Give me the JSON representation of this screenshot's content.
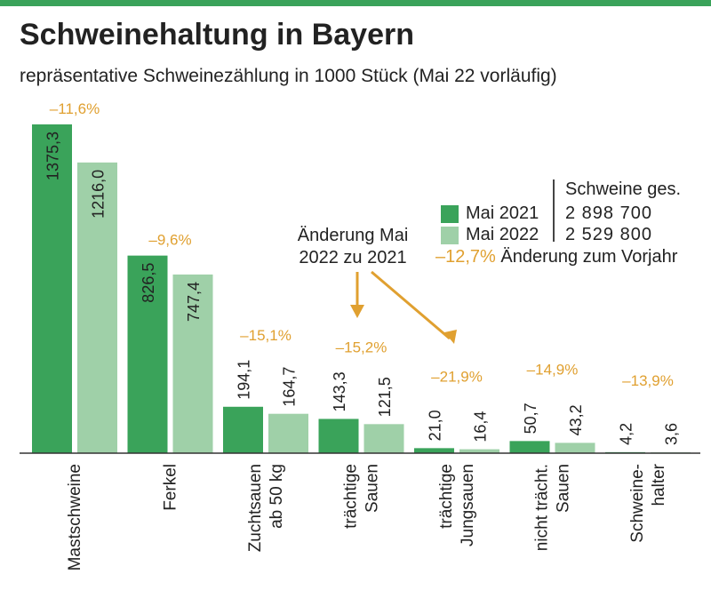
{
  "title": "Schweinehaltung in Bayern",
  "subtitle": "repräsentative Schweinezählung in 1000 Stück (Mai 22 vorläufig)",
  "colors": {
    "accent_line": "#3aa35a",
    "series_2021": "#3aa35a",
    "series_2022": "#9fd0a8",
    "change": "#e0a030",
    "axis": "#333333"
  },
  "legend": {
    "series_2021_label": "Mai 2021",
    "series_2022_label": "Mai 2022",
    "total_header": "Schweine ges.",
    "total_2021": "2 898 700",
    "total_2022": "2 529 800",
    "total_change": "–12,7%",
    "total_change_label": "Änderung zum Vorjahr"
  },
  "annotation": {
    "line1": "Änderung Mai",
    "line2": "2022 zu 2021"
  },
  "chart_data": {
    "type": "bar",
    "title": "Schweinehaltung in Bayern",
    "subtitle": "repräsentative Schweinezählung in 1000 Stück (Mai 22 vorläufig)",
    "categories": [
      [
        "Mastschweine"
      ],
      [
        "Ferkel"
      ],
      [
        "Zuchtsauen",
        "ab 50 kg"
      ],
      [
        "trächtige",
        "Sauen"
      ],
      [
        "trächtige",
        "Jungsauen"
      ],
      [
        "nicht trächt.",
        "Sauen"
      ],
      [
        "Schweine-",
        "halter"
      ]
    ],
    "series": [
      {
        "name": "Mai 2021",
        "values": [
          1375.3,
          826.5,
          194.1,
          143.3,
          21.0,
          50.7,
          4.2
        ],
        "labels": [
          "1375,3",
          "826,5",
          "194,1",
          "143,3",
          "21,0",
          "50,7",
          "4,2"
        ]
      },
      {
        "name": "Mai 2022",
        "values": [
          1216.0,
          747.4,
          164.7,
          121.5,
          16.4,
          43.2,
          3.6
        ],
        "labels": [
          "1216,0",
          "747,4",
          "164,7",
          "121,5",
          "16,4",
          "43,2",
          "3,6"
        ]
      }
    ],
    "changes": [
      "–11,6%",
      "–9,6%",
      "–15,1%",
      "–15,2%",
      "–21,9%",
      "–14,9%",
      "–13,9%"
    ],
    "ylim": [
      0,
      1375.3
    ],
    "grid": false,
    "legend_position": "right"
  }
}
